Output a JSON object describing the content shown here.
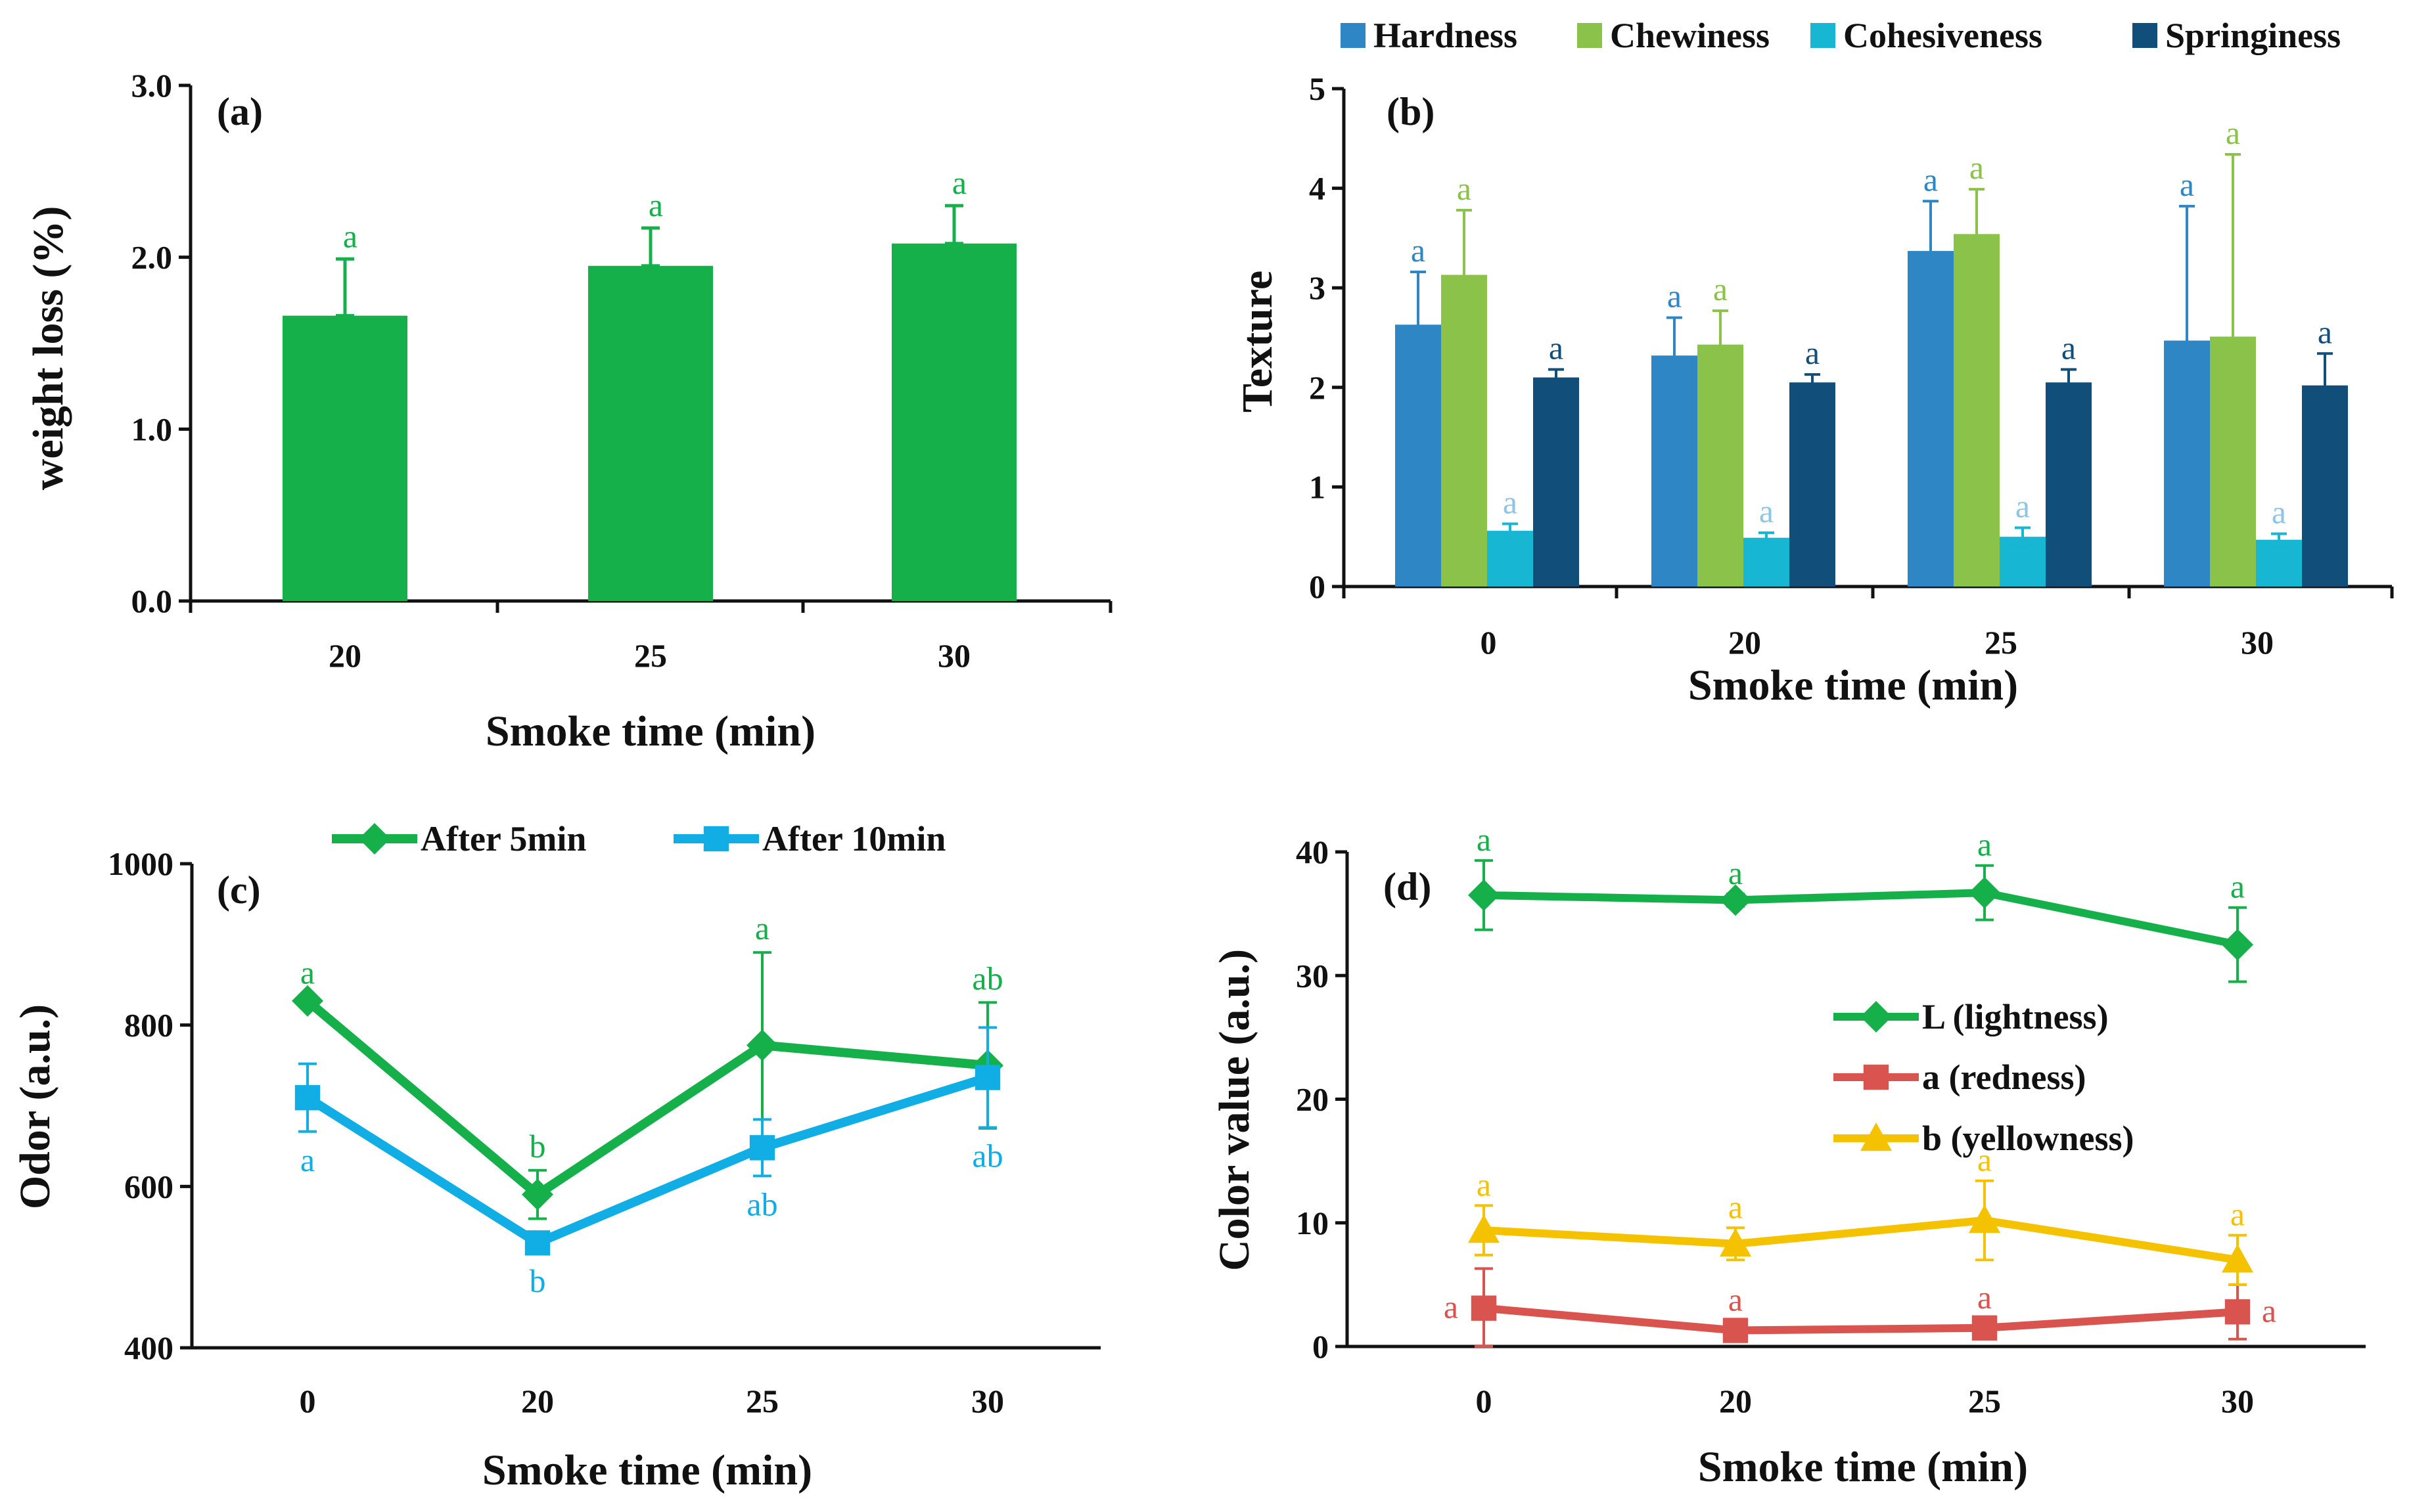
{
  "colors": {
    "green": "#16b04b",
    "sky": "#11aee6",
    "hardness": "#2f86c5",
    "chewiness": "#8bc34a",
    "cohesiveness": "#17b6d3",
    "springiness": "#124e7a",
    "lightness": "#16b04b",
    "redness": "#d9534f",
    "yellowness": "#f5c200",
    "axis": "#111111"
  },
  "chart_data": [
    {
      "id": "a",
      "panel_label": "(a)",
      "type": "bar",
      "xlabel": "Smoke time (min)",
      "ylabel": "weight loss (%)",
      "ylim": [
        0,
        3
      ],
      "yticks": [
        "0.0",
        "1.0",
        "2.0",
        "3.0"
      ],
      "categories": [
        "20",
        "25",
        "30"
      ],
      "series": [
        {
          "name": "weight loss",
          "values": [
            1.66,
            1.95,
            2.08
          ],
          "errors": [
            0.33,
            0.22,
            0.22
          ],
          "letters": [
            "a",
            "a",
            "a"
          ]
        }
      ]
    },
    {
      "id": "b",
      "panel_label": "(b)",
      "type": "bar",
      "xlabel": "Smoke time (min)",
      "ylabel": "Texture",
      "ylim": [
        0,
        5
      ],
      "yticks": [
        "0",
        "1",
        "2",
        "3",
        "4",
        "5"
      ],
      "categories": [
        "0",
        "20",
        "25",
        "30"
      ],
      "legend": [
        "Hardness",
        "Chewiness",
        "Cohesiveness",
        "Springiness"
      ],
      "series": [
        {
          "name": "Hardness",
          "values": [
            2.63,
            2.32,
            3.37,
            2.47
          ],
          "errors": [
            0.53,
            0.38,
            0.5,
            1.35
          ],
          "letters": [
            "a",
            "a",
            "a",
            "a"
          ]
        },
        {
          "name": "Chewiness",
          "values": [
            3.13,
            2.43,
            3.54,
            2.51
          ],
          "errors": [
            0.65,
            0.34,
            0.45,
            1.83
          ],
          "letters": [
            "a",
            "a",
            "a",
            "a"
          ]
        },
        {
          "name": "Cohesiveness",
          "values": [
            0.56,
            0.49,
            0.5,
            0.47
          ],
          "errors": [
            0.07,
            0.05,
            0.09,
            0.06
          ],
          "letters": [
            "a",
            "a",
            "a",
            "a"
          ]
        },
        {
          "name": "Springiness",
          "values": [
            2.1,
            2.05,
            2.05,
            2.02
          ],
          "errors": [
            0.08,
            0.08,
            0.13,
            0.32
          ],
          "letters": [
            "a",
            "a",
            "a",
            "a"
          ]
        }
      ]
    },
    {
      "id": "c",
      "panel_label": "(c)",
      "type": "line",
      "xlabel": "Smoke time (min)",
      "ylabel": "Odor (a.u.)",
      "ylim": [
        400,
        1000
      ],
      "yticks": [
        "400",
        "600",
        "800",
        "1000"
      ],
      "categories": [
        "0",
        "20",
        "25",
        "30"
      ],
      "series": [
        {
          "name": "After 5min",
          "marker": "diamond",
          "values": [
            830,
            590,
            775,
            750
          ],
          "errors": [
            5,
            30,
            115,
            78
          ],
          "letters": [
            "a",
            "b",
            "a",
            "ab"
          ]
        },
        {
          "name": "After 10min",
          "marker": "square",
          "values": [
            710,
            530,
            648,
            735
          ],
          "errors": [
            42,
            12,
            35,
            62
          ],
          "letters": [
            "a",
            "b",
            "ab",
            "ab"
          ]
        }
      ]
    },
    {
      "id": "d",
      "panel_label": "(d)",
      "type": "line",
      "xlabel": "Smoke time (min)",
      "ylabel": "Color value (a.u.)",
      "ylim": [
        0,
        40
      ],
      "yticks": [
        "0",
        "10",
        "20",
        "30",
        "40"
      ],
      "categories": [
        "0",
        "20",
        "25",
        "30"
      ],
      "series": [
        {
          "name": "L (lightness)",
          "marker": "diamond",
          "values": [
            36.5,
            36.1,
            36.7,
            32.5
          ],
          "errors": [
            2.8,
            0.5,
            2.2,
            3.0
          ],
          "letters": [
            "a",
            "a",
            "a",
            "a"
          ]
        },
        {
          "name": "a (redness)",
          "marker": "square",
          "values": [
            3.1,
            1.3,
            1.5,
            2.8
          ],
          "errors": [
            3.2,
            0.5,
            0.5,
            2.2
          ],
          "letters": [
            "a",
            "a",
            "a",
            "a"
          ]
        },
        {
          "name": "b (yellowness)",
          "marker": "triangle",
          "values": [
            9.4,
            8.3,
            10.2,
            7.0
          ],
          "errors": [
            2.0,
            1.3,
            3.2,
            2.0
          ],
          "letters": [
            "a",
            "a",
            "a",
            "a"
          ]
        }
      ]
    }
  ]
}
